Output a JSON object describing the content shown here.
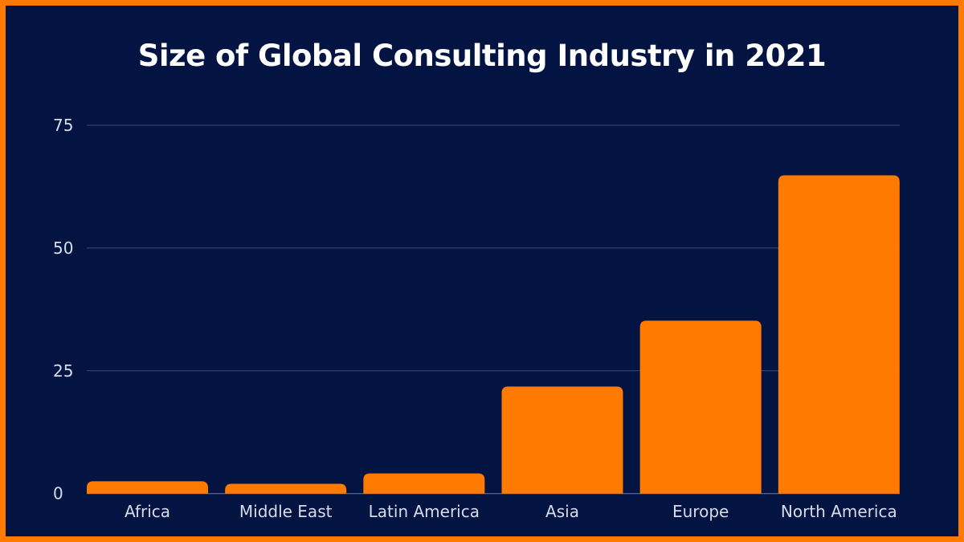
{
  "chart_data": {
    "type": "bar",
    "title": "Size of Global Consulting Industry in 2021",
    "categories": [
      "Africa",
      "Middle East",
      "Latin America",
      "Asia",
      "Europe",
      "North America"
    ],
    "values": [
      2.5,
      2.0,
      4.1,
      21.8,
      35.2,
      64.8
    ],
    "xlabel": "",
    "ylabel": "",
    "ylim": [
      0,
      75
    ],
    "yticks": [
      "0",
      "25",
      "50",
      "75"
    ],
    "grid": true,
    "colors": {
      "bar": "#ff7a00",
      "background": "#031443",
      "border": "#ff7a00",
      "grid": "#3a4a78"
    }
  }
}
